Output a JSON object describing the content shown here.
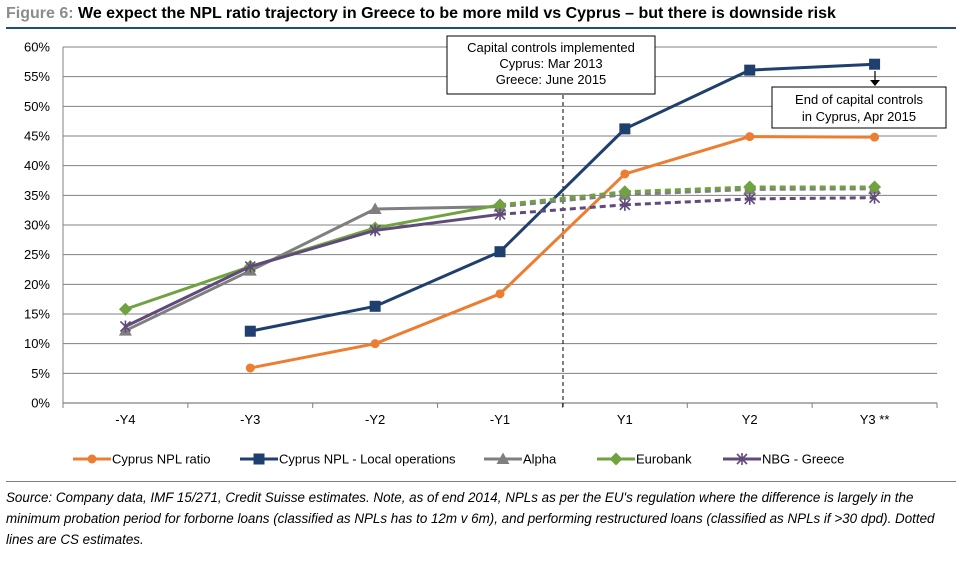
{
  "figure": {
    "label": "Figure 6:",
    "title": "We expect the NPL ratio trajectory in Greece to be more mild vs Cyprus – but there is downside risk"
  },
  "chart_data": {
    "type": "line",
    "title": "We expect the NPL ratio trajectory in Greece to be more mild vs Cyprus – but there is downside risk",
    "categories": [
      "-Y4",
      "-Y3",
      "-Y2",
      "-Y1",
      "Y1",
      "Y2",
      "Y3 **"
    ],
    "ylim": [
      0,
      60
    ],
    "yticks": [
      0,
      5,
      10,
      15,
      20,
      25,
      30,
      35,
      40,
      45,
      50,
      55,
      60
    ],
    "ytick_labels": [
      "0%",
      "5%",
      "10%",
      "15%",
      "20%",
      "25%",
      "30%",
      "35%",
      "40%",
      "45%",
      "50%",
      "55%",
      "60%"
    ],
    "grid": true,
    "legend_position": "bottom",
    "series": [
      {
        "name": "Cyprus NPL ratio",
        "color": "#ed7d31",
        "marker": "circle",
        "values": [
          null,
          5.9,
          10.0,
          18.4,
          38.6,
          44.9,
          44.8
        ],
        "estimate_from": null
      },
      {
        "name": "Cyprus NPL - Local operations",
        "color": "#1f3f6e",
        "marker": "square",
        "values": [
          null,
          12.1,
          16.3,
          25.5,
          46.2,
          56.1,
          57.1
        ],
        "estimate_from": null
      },
      {
        "name": "Alpha",
        "color": "#7f7f7f",
        "marker": "triangle",
        "values": [
          12.2,
          22.3,
          32.7,
          33.1,
          35.1,
          36.0,
          36.1
        ],
        "estimate_from": 3
      },
      {
        "name": "Eurobank",
        "color": "#70a33f",
        "marker": "diamond",
        "values": [
          15.8,
          23.0,
          29.5,
          33.4,
          35.6,
          36.4,
          36.4
        ],
        "estimate_from": 3
      },
      {
        "name": "NBG - Greece",
        "color": "#604a7b",
        "marker": "star",
        "values": [
          12.9,
          23.0,
          29.1,
          31.8,
          33.4,
          34.4,
          34.6
        ],
        "estimate_from": 3
      }
    ],
    "annotations": [
      {
        "id": "capital-controls",
        "lines": [
          "Capital controls implemented",
          "Cyprus: Mar 2013",
          "Greece: June 2015"
        ]
      },
      {
        "id": "end-controls",
        "lines": [
          "End of capital controls",
          "in Cyprus, Apr 2015"
        ]
      }
    ]
  },
  "source": "Source: Company data, IMF 15/271, Credit Suisse estimates. Note, as of end 2014, NPLs as per the EU's regulation where the difference is largely in the minimum probation period for forborne loans (classified as NPLs has to 12m v 6m), and performing restructured loans (classified as NPLs if >30 dpd). Dotted lines are CS estimates."
}
